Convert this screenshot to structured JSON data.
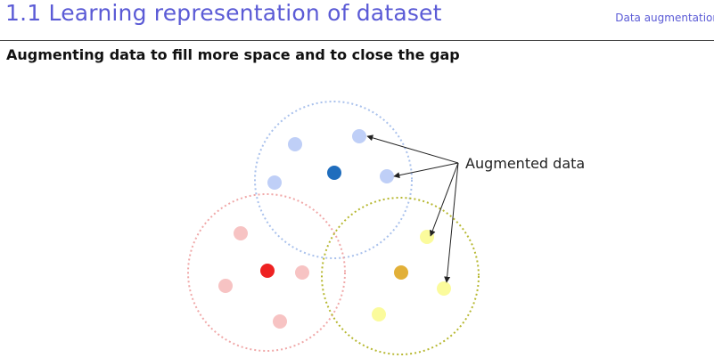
{
  "header": {
    "title": "1.1 Learning representation of dataset",
    "section_tag": "Data augmentation"
  },
  "subtitle": "Augmenting data to fill more space and to close the gap",
  "diagram": {
    "annotation": "Augmented data",
    "colors": {
      "blue_circle": "#a9c1ec",
      "blue_center": "#1f6dbd",
      "blue_aug": "#bfcff7",
      "red_circle": "#f0a8a8",
      "red_center": "#ee2222",
      "red_aug": "#f7c3c3",
      "yellow_circle": "#b7b832",
      "yellow_center": "#e2b038",
      "yellow_aug": "#fbfb9c",
      "arrow": "#222222"
    }
  }
}
